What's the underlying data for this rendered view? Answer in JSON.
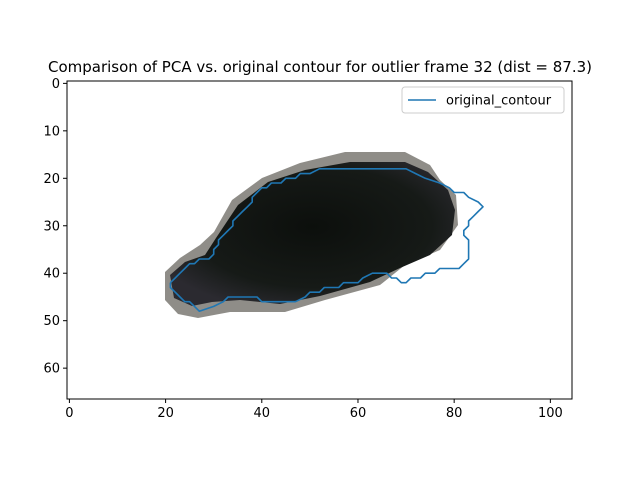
{
  "chart_data": {
    "type": "image",
    "title": "Comparison of PCA vs. original contour for outlier frame 32 (dist = 87.3)",
    "xlim": [
      -0.5,
      104.5
    ],
    "ylim": [
      66.5,
      -0.5
    ],
    "xticks": [
      0,
      20,
      40,
      60,
      80,
      100
    ],
    "yticks": [
      0,
      10,
      20,
      30,
      40,
      50,
      60
    ],
    "legend": {
      "position": "top-right",
      "entries": [
        "original_contour"
      ]
    },
    "series": [
      {
        "name": "original_contour",
        "color": "#1f77b4",
        "points": [
          [
            21,
            42
          ],
          [
            22,
            41
          ],
          [
            23,
            40
          ],
          [
            24,
            39
          ],
          [
            25,
            38
          ],
          [
            26,
            38
          ],
          [
            27,
            37
          ],
          [
            28,
            37
          ],
          [
            29,
            37
          ],
          [
            30,
            36
          ],
          [
            30,
            35
          ],
          [
            31,
            34
          ],
          [
            31,
            33
          ],
          [
            32,
            32
          ],
          [
            33,
            31
          ],
          [
            34,
            30
          ],
          [
            34,
            29
          ],
          [
            35,
            28
          ],
          [
            36,
            27
          ],
          [
            37,
            26
          ],
          [
            38,
            25
          ],
          [
            38,
            24
          ],
          [
            39,
            23
          ],
          [
            40,
            22
          ],
          [
            41,
            22
          ],
          [
            42,
            21
          ],
          [
            44,
            21
          ],
          [
            45,
            20
          ],
          [
            47,
            20
          ],
          [
            48,
            19
          ],
          [
            50,
            19
          ],
          [
            52,
            18
          ],
          [
            70,
            18
          ],
          [
            72,
            19
          ],
          [
            74,
            20
          ],
          [
            77,
            21
          ],
          [
            79,
            22
          ],
          [
            80,
            23
          ],
          [
            82,
            23
          ],
          [
            83,
            24
          ],
          [
            85,
            25
          ],
          [
            86,
            26
          ],
          [
            85,
            27
          ],
          [
            84,
            28
          ],
          [
            83,
            29
          ],
          [
            83,
            30
          ],
          [
            82,
            31
          ],
          [
            82,
            32
          ],
          [
            83,
            33
          ],
          [
            83,
            35
          ],
          [
            83,
            37
          ],
          [
            82,
            38
          ],
          [
            81,
            39
          ],
          [
            77,
            39
          ],
          [
            76,
            40
          ],
          [
            74,
            40
          ],
          [
            73,
            41
          ],
          [
            71,
            41
          ],
          [
            70,
            42
          ],
          [
            69,
            42
          ],
          [
            68,
            41
          ],
          [
            67,
            41
          ],
          [
            66,
            40
          ],
          [
            63,
            40
          ],
          [
            61,
            41
          ],
          [
            60,
            42
          ],
          [
            57,
            42
          ],
          [
            56,
            43
          ],
          [
            53,
            43
          ],
          [
            52,
            44
          ],
          [
            50,
            44
          ],
          [
            49,
            45
          ],
          [
            47,
            46
          ],
          [
            40,
            46
          ],
          [
            39,
            45
          ],
          [
            33,
            45
          ],
          [
            32,
            46
          ],
          [
            30,
            47
          ],
          [
            27,
            48
          ],
          [
            26,
            47
          ],
          [
            25,
            46
          ],
          [
            24,
            46
          ],
          [
            23,
            45
          ],
          [
            22,
            44
          ],
          [
            21,
            43
          ],
          [
            21,
            42
          ]
        ]
      }
    ]
  }
}
